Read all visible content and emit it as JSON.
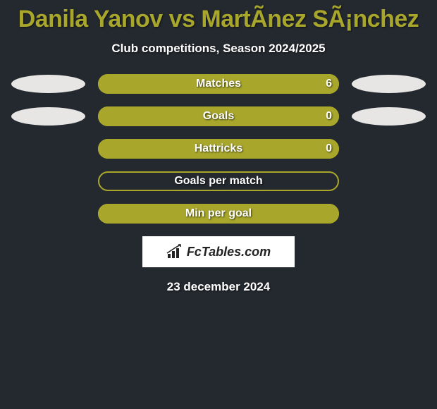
{
  "background_color": "#24292f",
  "title": {
    "text": "Danila Yanov vs MartÃ­nez SÃ¡nchez",
    "color": "#a8a72c",
    "fontsize": 34
  },
  "subtitle": {
    "text": "Club competitions, Season 2024/2025",
    "color": "#ffffff",
    "fontsize": 17
  },
  "bubble_color": "#e7e6e5",
  "rows": [
    {
      "label": "Matches",
      "left_value": "",
      "right_value": "6",
      "has_left_bubble": true,
      "has_right_bubble": true,
      "border_color": "#a8a72c",
      "fill_color": "#a8a72c",
      "fill_side": "right",
      "fill_pct": 100
    },
    {
      "label": "Goals",
      "left_value": "",
      "right_value": "0",
      "has_left_bubble": true,
      "has_right_bubble": true,
      "border_color": "#a8a72c",
      "fill_color": "#a8a72c",
      "fill_side": "right",
      "fill_pct": 100
    },
    {
      "label": "Hattricks",
      "left_value": "",
      "right_value": "0",
      "has_left_bubble": false,
      "has_right_bubble": false,
      "border_color": "#a8a72c",
      "fill_color": "#a8a72c",
      "fill_side": "right",
      "fill_pct": 100
    },
    {
      "label": "Goals per match",
      "left_value": "",
      "right_value": "",
      "has_left_bubble": false,
      "has_right_bubble": false,
      "border_color": "#a8a72c",
      "fill_color": "#a8a72c",
      "fill_side": "none",
      "fill_pct": 0
    },
    {
      "label": "Min per goal",
      "left_value": "",
      "right_value": "",
      "has_left_bubble": false,
      "has_right_bubble": false,
      "border_color": "#a8a72c",
      "fill_color": "#a8a72c",
      "fill_side": "right",
      "fill_pct": 100
    }
  ],
  "logo": {
    "text": "FcTables.com",
    "icon_color": "#222222",
    "bg_color": "#ffffff"
  },
  "date": {
    "text": "23 december 2024",
    "color": "#ffffff"
  }
}
